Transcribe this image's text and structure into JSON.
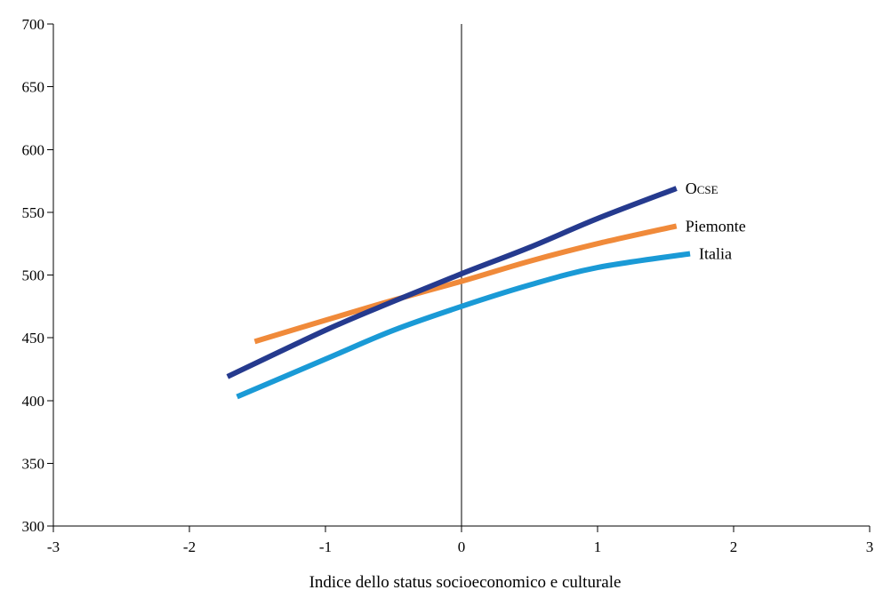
{
  "chart_data": {
    "type": "line",
    "title": "",
    "xlabel": "Indice dello status socioeconomico e culturale",
    "ylabel": "",
    "xlim": [
      -3,
      3
    ],
    "ylim": [
      300,
      700
    ],
    "xticks": [
      "-3",
      "-2",
      "-1",
      "0",
      "1",
      "2",
      "3"
    ],
    "yticks": [
      "300",
      "350",
      "400",
      "450",
      "500",
      "550",
      "600",
      "650",
      "700"
    ],
    "grid": false,
    "legend": "none",
    "series": [
      {
        "name": "OCSE",
        "color": "#253a8e",
        "x": [
          -1.72,
          -1.0,
          -0.5,
          0.0,
          0.5,
          1.0,
          1.58
        ],
        "y": [
          419,
          456,
          479,
          501,
          522,
          545,
          569
        ]
      },
      {
        "name": "Piemonte",
        "color": "#f08a3a",
        "x": [
          -1.52,
          -1.0,
          -0.5,
          0.0,
          0.5,
          1.0,
          1.58
        ],
        "y": [
          447,
          464,
          480,
          495,
          511,
          525,
          539
        ]
      },
      {
        "name": "Italia",
        "color": "#1a9ad6",
        "x": [
          -1.65,
          -1.0,
          -0.5,
          0.0,
          0.5,
          1.0,
          1.68
        ],
        "y": [
          403,
          433,
          456,
          475,
          492,
          506,
          517
        ]
      }
    ]
  }
}
